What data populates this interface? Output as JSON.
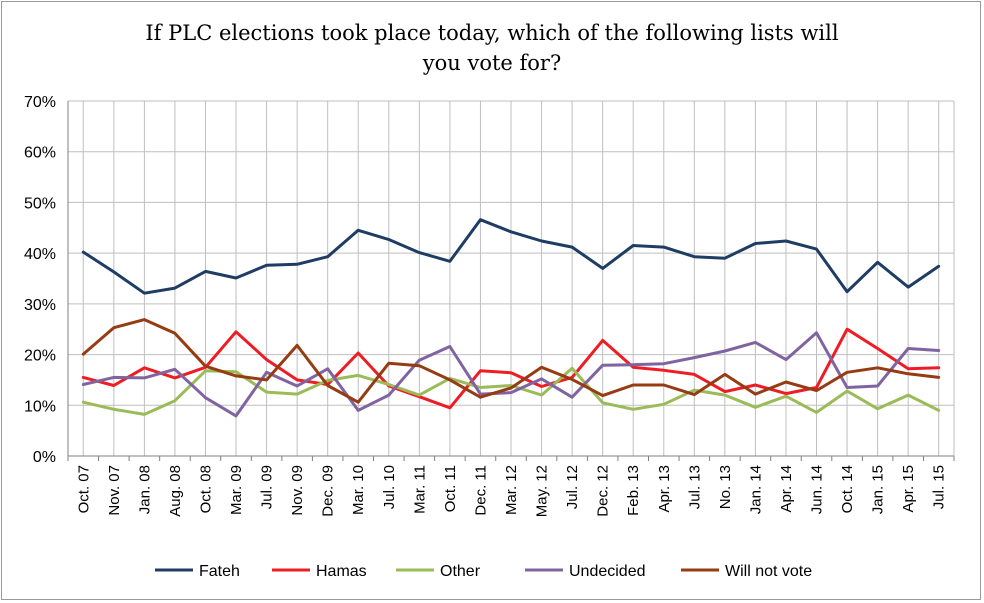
{
  "chart_data": {
    "type": "line",
    "title_lines": [
      "If PLC elections took place today, which of the following lists will",
      "you vote for?"
    ],
    "xlabel": "",
    "ylabel": "",
    "ylim": [
      0,
      70
    ],
    "y_ticks": [
      "0%",
      "10%",
      "20%",
      "30%",
      "40%",
      "50%",
      "60%",
      "70%"
    ],
    "grid": true,
    "legend_position": "bottom",
    "x": [
      "Oct. 07",
      "Nov. 07",
      "Jan. 08",
      "Aug. 08",
      "Oct. 08",
      "Mar. 09",
      "Jul. 09",
      "Nov. 09",
      "Dec. 09",
      "Mar. 10",
      "Jul. 10",
      "Mar. 11",
      "Oct. 11",
      "Dec. 11",
      "Mar. 12",
      "May. 12",
      "Jul. 12",
      "Dec. 12",
      "Feb. 13",
      "Apr. 13",
      "Jul. 13",
      "No. 13",
      "Jan. 14",
      "Apr. 14",
      "Jun. 14",
      "Oct. 14",
      "Jan. 15",
      "Apr. 15",
      "Jul. 15"
    ],
    "series": [
      {
        "name": "Fateh",
        "color": "#1f3d64",
        "values": [
          40.2,
          36.3,
          32.1,
          33.1,
          36.4,
          35.1,
          37.6,
          37.8,
          39.3,
          44.5,
          42.7,
          40.1,
          38.4,
          46.6,
          44.2,
          42.4,
          41.2,
          37.0,
          41.5,
          41.2,
          39.3,
          39.0,
          41.9,
          42.4,
          40.8,
          32.4,
          38.2,
          33.3,
          37.4
        ]
      },
      {
        "name": "Hamas",
        "color": "#ee1c24",
        "values": [
          15.5,
          13.9,
          17.4,
          15.4,
          17.5,
          24.5,
          19.0,
          15.0,
          14.1,
          20.3,
          13.8,
          11.7,
          9.5,
          16.8,
          16.4,
          13.7,
          15.5,
          22.8,
          17.5,
          16.9,
          16.1,
          12.7,
          14.0,
          12.3,
          13.5,
          25.0,
          21.2,
          17.2,
          17.4
        ]
      },
      {
        "name": "Other",
        "color": "#9bbb59",
        "values": [
          10.6,
          9.2,
          8.2,
          10.9,
          16.8,
          16.6,
          12.6,
          12.2,
          14.9,
          15.9,
          14.1,
          12.0,
          15.3,
          13.5,
          13.9,
          12.0,
          17.3,
          10.5,
          9.2,
          10.2,
          13.0,
          12.0,
          9.6,
          11.8,
          8.6,
          12.8,
          9.3,
          12.0,
          9.0
        ]
      },
      {
        "name": "Undecided",
        "color": "#8064a2",
        "values": [
          14.1,
          15.5,
          15.4,
          17.1,
          11.5,
          7.9,
          16.5,
          13.8,
          17.2,
          9.0,
          12.0,
          18.9,
          21.6,
          12.2,
          12.5,
          15.2,
          11.6,
          17.9,
          18.0,
          18.2,
          19.4,
          20.7,
          22.4,
          19.0,
          24.3,
          13.5,
          13.8,
          21.2,
          20.8
        ]
      },
      {
        "name": "Will not vote",
        "color": "#963c12",
        "values": [
          20.1,
          25.3,
          26.9,
          24.2,
          17.7,
          15.8,
          15.0,
          21.8,
          13.9,
          10.6,
          18.3,
          17.8,
          15.0,
          11.6,
          13.4,
          17.5,
          15.1,
          11.9,
          14.0,
          14.0,
          12.1,
          16.1,
          12.2,
          14.6,
          12.9,
          16.5,
          17.4,
          16.2,
          15.5
        ]
      }
    ]
  }
}
